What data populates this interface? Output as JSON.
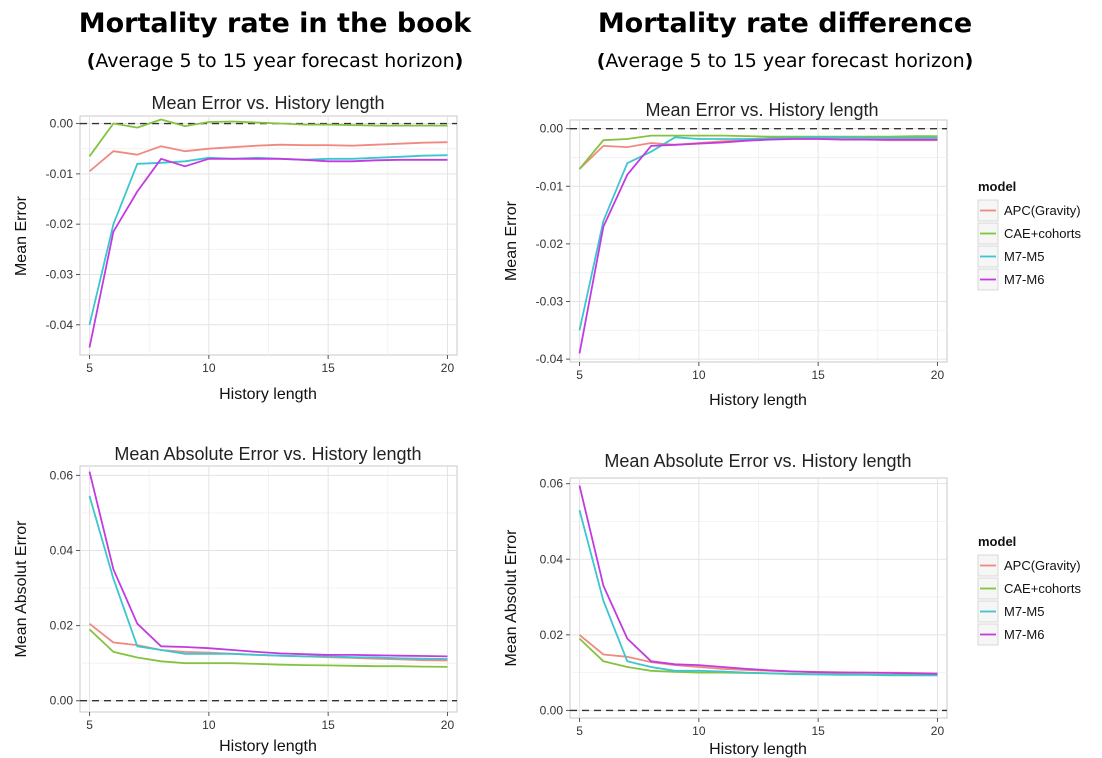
{
  "columns": [
    {
      "title": "Mortality rate in the book",
      "subtitle_open": "(",
      "subtitle_text": "Average 5 to 15 year forecast horizon",
      "subtitle_close": ")"
    },
    {
      "title": "Mortality rate difference",
      "subtitle_open": "(",
      "subtitle_text": "Average 5 to 15 year forecast horizon",
      "subtitle_close": ")"
    }
  ],
  "colors": {
    "APC(Gravity)": "#f08a80",
    "CAE+cohorts": "#84c340",
    "M7-M5": "#3cc6cf",
    "M7-M6": "#c23be0"
  },
  "chart_data": [
    {
      "type": "line",
      "title": "Mean Error vs. History length",
      "xlabel": "History length",
      "ylabel": "Mean Error",
      "xlim": [
        4.6,
        20.4
      ],
      "ylim": [
        -0.046,
        0.0015
      ],
      "xticks": [
        5,
        10,
        15,
        20
      ],
      "yticks": [
        0.0,
        -0.01,
        -0.02,
        -0.03,
        -0.04
      ],
      "ytick_labels": [
        "0.00",
        "-0.01",
        "-0.02",
        "-0.03",
        "-0.04"
      ],
      "reference_line": 0,
      "grid": true,
      "legend": false,
      "x": [
        5,
        6,
        7,
        8,
        9,
        10,
        11,
        12,
        13,
        14,
        15,
        16,
        17,
        18,
        19,
        20
      ],
      "series": [
        {
          "name": "APC(Gravity)",
          "values": [
            -0.0095,
            -0.0055,
            -0.0062,
            -0.0045,
            -0.0055,
            -0.005,
            -0.0047,
            -0.0044,
            -0.0042,
            -0.0043,
            -0.0043,
            -0.0044,
            -0.0042,
            -0.004,
            -0.0038,
            -0.0037
          ]
        },
        {
          "name": "CAE+cohorts",
          "values": [
            -0.0065,
            0.0,
            -0.0008,
            0.0008,
            -0.0005,
            0.0003,
            0.0004,
            0.0002,
            0.0,
            -0.0002,
            -0.0002,
            -0.0003,
            -0.0004,
            -0.0004,
            -0.0004,
            -0.0004
          ]
        },
        {
          "name": "M7-M5",
          "values": [
            -0.04,
            -0.02,
            -0.008,
            -0.0078,
            -0.0075,
            -0.0068,
            -0.007,
            -0.0068,
            -0.007,
            -0.0072,
            -0.007,
            -0.007,
            -0.0068,
            -0.0066,
            -0.0064,
            -0.0063
          ]
        },
        {
          "name": "M7-M6",
          "values": [
            -0.0445,
            -0.0215,
            -0.0135,
            -0.007,
            -0.0085,
            -0.007,
            -0.007,
            -0.007,
            -0.007,
            -0.0072,
            -0.0075,
            -0.0075,
            -0.0073,
            -0.0072,
            -0.0072,
            -0.0072
          ]
        }
      ]
    },
    {
      "type": "line",
      "title": "Mean Error vs. History length",
      "xlabel": "History length",
      "ylabel": "Mean Error",
      "xlim": [
        4.6,
        20.4
      ],
      "ylim": [
        -0.0405,
        0.0015
      ],
      "xticks": [
        5,
        10,
        15,
        20
      ],
      "yticks": [
        0.0,
        -0.01,
        -0.02,
        -0.03,
        -0.04
      ],
      "ytick_labels": [
        "0.00",
        "-0.01",
        "-0.02",
        "-0.03",
        "-0.04"
      ],
      "reference_line": 0,
      "grid": true,
      "legend": true,
      "legend_title": "model",
      "x": [
        5,
        6,
        7,
        8,
        9,
        10,
        11,
        12,
        13,
        14,
        15,
        16,
        17,
        18,
        19,
        20
      ],
      "series": [
        {
          "name": "APC(Gravity)",
          "values": [
            -0.007,
            -0.003,
            -0.0032,
            -0.0025,
            -0.0028,
            -0.0025,
            -0.0022,
            -0.002,
            -0.0018,
            -0.0017,
            -0.0017,
            -0.0018,
            -0.0019,
            -0.002,
            -0.002,
            -0.002
          ]
        },
        {
          "name": "CAE+cohorts",
          "values": [
            -0.007,
            -0.002,
            -0.0018,
            -0.0012,
            -0.0012,
            -0.0012,
            -0.0012,
            -0.0013,
            -0.0014,
            -0.0014,
            -0.0014,
            -0.0014,
            -0.0014,
            -0.0014,
            -0.0013,
            -0.0013
          ]
        },
        {
          "name": "M7-M5",
          "values": [
            -0.035,
            -0.016,
            -0.006,
            -0.004,
            -0.0015,
            -0.0018,
            -0.0018,
            -0.0018,
            -0.0017,
            -0.0016,
            -0.0015,
            -0.0015,
            -0.0016,
            -0.0016,
            -0.0016,
            -0.0016
          ]
        },
        {
          "name": "M7-M6",
          "values": [
            -0.039,
            -0.017,
            -0.008,
            -0.003,
            -0.0028,
            -0.0026,
            -0.0024,
            -0.0021,
            -0.0019,
            -0.0018,
            -0.0018,
            -0.0019,
            -0.0019,
            -0.0019,
            -0.0019,
            -0.0019
          ]
        }
      ]
    },
    {
      "type": "line",
      "title": "Mean Absolute Error vs. History length",
      "xlabel": "History length",
      "ylabel": "Mean Absolut Error",
      "xlim": [
        4.6,
        20.4
      ],
      "ylim": [
        -0.003,
        0.0625
      ],
      "xticks": [
        5,
        10,
        15,
        20
      ],
      "yticks": [
        0.0,
        0.02,
        0.04,
        0.06
      ],
      "ytick_labels": [
        "0.00",
        "0.02",
        "0.04",
        "0.06"
      ],
      "reference_line": 0,
      "grid": true,
      "legend": false,
      "x": [
        5,
        6,
        7,
        8,
        9,
        10,
        11,
        12,
        13,
        14,
        15,
        16,
        17,
        18,
        19,
        20
      ],
      "series": [
        {
          "name": "APC(Gravity)",
          "values": [
            0.0205,
            0.0155,
            0.0148,
            0.0135,
            0.013,
            0.0128,
            0.0125,
            0.0122,
            0.012,
            0.0118,
            0.0116,
            0.0114,
            0.0112,
            0.011,
            0.0108,
            0.0107
          ]
        },
        {
          "name": "CAE+cohorts",
          "values": [
            0.019,
            0.013,
            0.0115,
            0.0105,
            0.01,
            0.01,
            0.01,
            0.0098,
            0.0096,
            0.0095,
            0.0094,
            0.0093,
            0.0092,
            0.0092,
            0.0091,
            0.009
          ]
        },
        {
          "name": "M7-M5",
          "values": [
            0.0545,
            0.0325,
            0.0145,
            0.0135,
            0.0125,
            0.0125,
            0.0125,
            0.0122,
            0.012,
            0.0118,
            0.0118,
            0.0116,
            0.0115,
            0.0113,
            0.0112,
            0.0111
          ]
        },
        {
          "name": "M7-M6",
          "values": [
            0.061,
            0.035,
            0.0205,
            0.0145,
            0.0143,
            0.014,
            0.0135,
            0.013,
            0.0126,
            0.0124,
            0.0122,
            0.0122,
            0.0121,
            0.012,
            0.0119,
            0.0118
          ]
        }
      ]
    },
    {
      "type": "line",
      "title": "Mean Absolute Error vs. History length",
      "xlabel": "History length",
      "ylabel": "Mean Absolut Error",
      "xlim": [
        4.6,
        20.4
      ],
      "ylim": [
        -0.002,
        0.0615
      ],
      "xticks": [
        5,
        10,
        15,
        20
      ],
      "yticks": [
        0.0,
        0.02,
        0.04,
        0.06
      ],
      "ytick_labels": [
        "0.00",
        "0.02",
        "0.04",
        "0.06"
      ],
      "reference_line": 0,
      "grid": true,
      "legend": true,
      "legend_title": "model",
      "x": [
        5,
        6,
        7,
        8,
        9,
        10,
        11,
        12,
        13,
        14,
        15,
        16,
        17,
        18,
        19,
        20
      ],
      "series": [
        {
          "name": "APC(Gravity)",
          "values": [
            0.02,
            0.0148,
            0.0142,
            0.0128,
            0.012,
            0.0115,
            0.011,
            0.0107,
            0.0105,
            0.0103,
            0.0102,
            0.0101,
            0.01,
            0.01,
            0.0099,
            0.0098
          ]
        },
        {
          "name": "CAE+cohorts",
          "values": [
            0.019,
            0.013,
            0.0115,
            0.0105,
            0.0102,
            0.01,
            0.01,
            0.0099,
            0.0098,
            0.0097,
            0.0096,
            0.0095,
            0.0095,
            0.0094,
            0.0094,
            0.0094
          ]
        },
        {
          "name": "M7-M5",
          "values": [
            0.053,
            0.029,
            0.013,
            0.0115,
            0.0105,
            0.0105,
            0.0103,
            0.01,
            0.0098,
            0.0096,
            0.0095,
            0.0094,
            0.0094,
            0.0093,
            0.0093,
            0.0093
          ]
        },
        {
          "name": "M7-M6",
          "values": [
            0.0595,
            0.033,
            0.019,
            0.013,
            0.0122,
            0.012,
            0.0115,
            0.011,
            0.0106,
            0.0103,
            0.0101,
            0.01,
            0.01,
            0.0099,
            0.0098,
            0.0097
          ]
        }
      ]
    }
  ]
}
